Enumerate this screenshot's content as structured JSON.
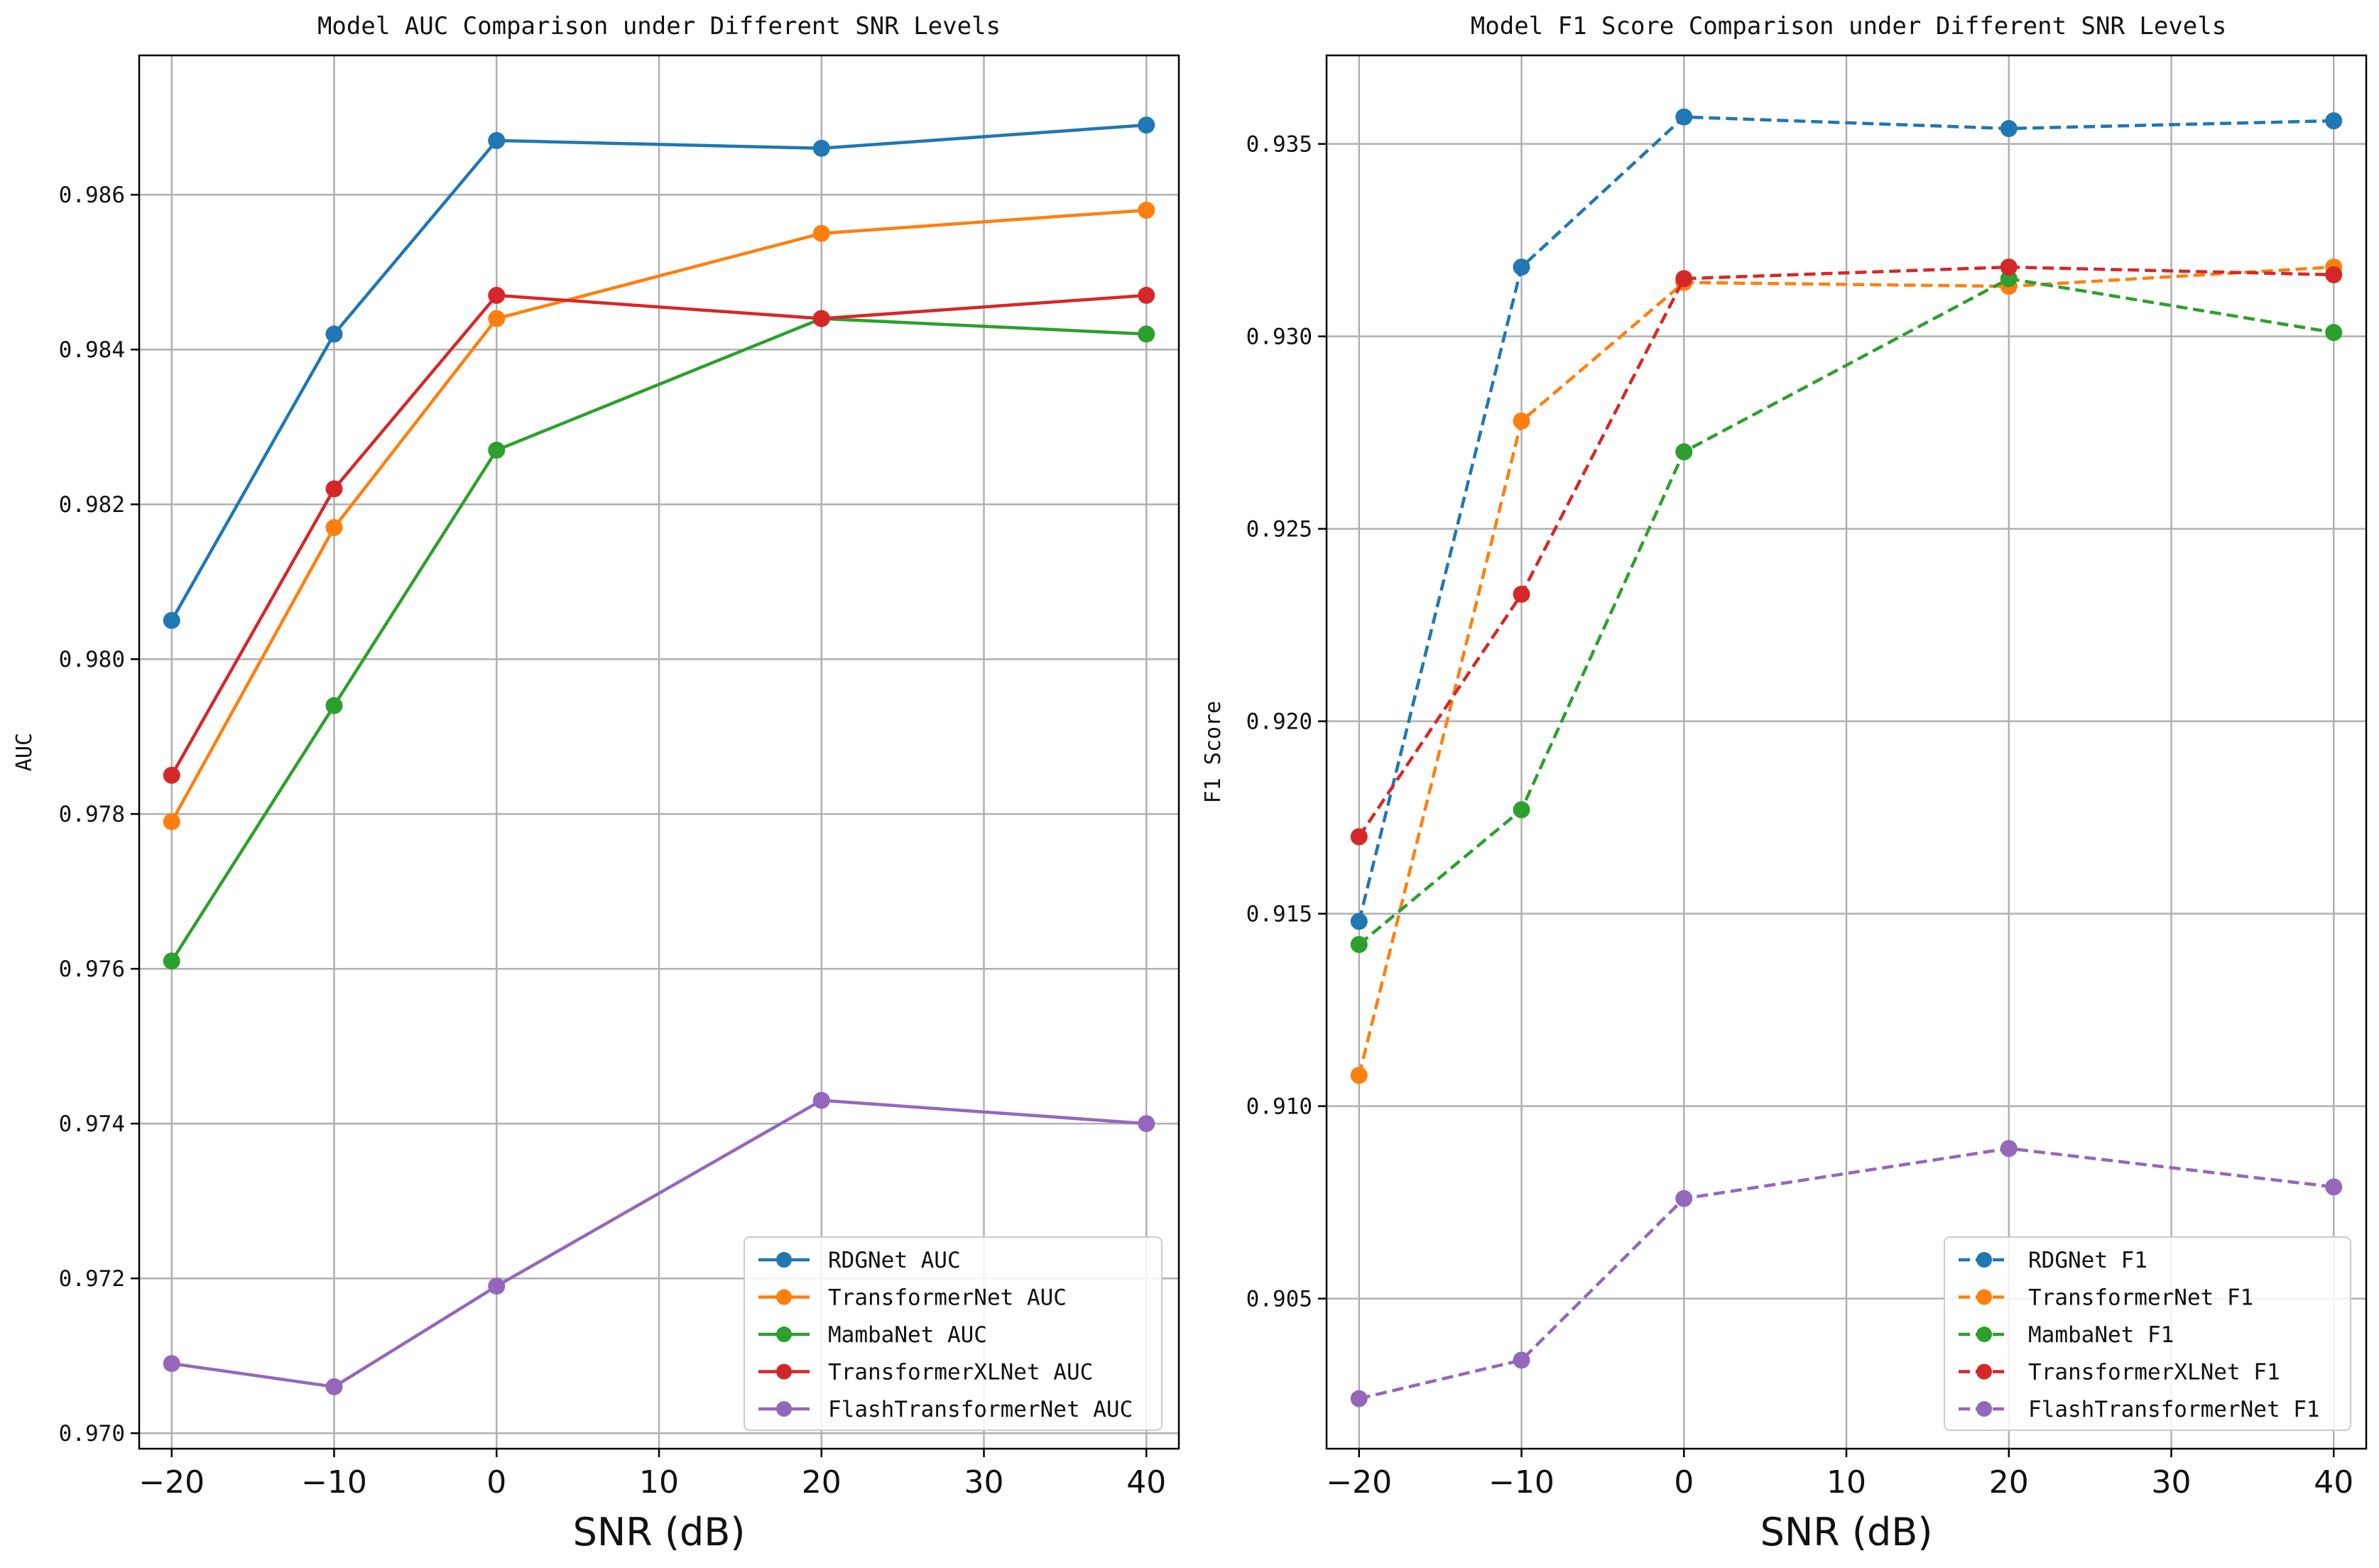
{
  "chart_data": [
    {
      "type": "line",
      "title": "Model AUC Comparison under Different SNR Levels",
      "xlabel": "SNR (dB)",
      "ylabel": "AUC",
      "x": [
        -20,
        -10,
        0,
        20,
        40
      ],
      "xlim": [
        -22,
        42
      ],
      "ylim": [
        0.9698,
        0.9878
      ],
      "xticks": [
        -20,
        -10,
        0,
        10,
        20,
        30,
        40
      ],
      "xtick_labels": [
        "−20",
        "−10",
        "0",
        "10",
        "20",
        "30",
        "40"
      ],
      "yticks": [
        0.97,
        0.972,
        0.974,
        0.976,
        0.978,
        0.98,
        0.982,
        0.984,
        0.986
      ],
      "ytick_labels": [
        "0.970",
        "0.972",
        "0.974",
        "0.976",
        "0.978",
        "0.980",
        "0.982",
        "0.984",
        "0.986"
      ],
      "grid": true,
      "line_style": "solid",
      "legend_position": "lower-right",
      "series": [
        {
          "name": "RDGNet AUC",
          "color": "#1f77b4",
          "values": [
            0.9805,
            0.9842,
            0.9867,
            0.9866,
            0.9869
          ]
        },
        {
          "name": "TransformerNet AUC",
          "color": "#ff7f0e",
          "values": [
            0.9779,
            0.9817,
            0.9844,
            0.9855,
            0.9858
          ]
        },
        {
          "name": "MambaNet AUC",
          "color": "#2ca02c",
          "values": [
            0.9761,
            0.9794,
            0.9827,
            0.9844,
            0.9842
          ]
        },
        {
          "name": "TransformerXLNet AUC",
          "color": "#d62728",
          "values": [
            0.9785,
            0.9822,
            0.9847,
            0.9844,
            0.9847
          ]
        },
        {
          "name": "FlashTransformerNet AUC",
          "color": "#9467bd",
          "values": [
            0.9709,
            0.9706,
            0.9719,
            0.9743,
            0.974
          ]
        }
      ]
    },
    {
      "type": "line",
      "title": "Model F1 Score Comparison under Different SNR Levels",
      "xlabel": "SNR (dB)",
      "ylabel": "F1 Score",
      "x": [
        -20,
        -10,
        0,
        20,
        40
      ],
      "xlim": [
        -22,
        42
      ],
      "ylim": [
        0.9011,
        0.9373
      ],
      "xticks": [
        -20,
        -10,
        0,
        10,
        20,
        30,
        40
      ],
      "xtick_labels": [
        "−20",
        "−10",
        "0",
        "10",
        "20",
        "30",
        "40"
      ],
      "yticks": [
        0.905,
        0.91,
        0.915,
        0.92,
        0.925,
        0.93,
        0.935
      ],
      "ytick_labels": [
        "0.905",
        "0.910",
        "0.915",
        "0.920",
        "0.925",
        "0.930",
        "0.935"
      ],
      "grid": true,
      "line_style": "dashed",
      "legend_position": "lower-right",
      "series": [
        {
          "name": "RDGNet F1",
          "color": "#1f77b4",
          "values": [
            0.9148,
            0.9318,
            0.9357,
            0.9354,
            0.9356
          ]
        },
        {
          "name": "TransformerNet F1",
          "color": "#ff7f0e",
          "values": [
            0.9108,
            0.9278,
            0.9314,
            0.9313,
            0.9318
          ]
        },
        {
          "name": "MambaNet F1",
          "color": "#2ca02c",
          "values": [
            0.9142,
            0.9177,
            0.927,
            0.9315,
            0.9301
          ]
        },
        {
          "name": "TransformerXLNet F1",
          "color": "#d62728",
          "values": [
            0.917,
            0.9233,
            0.9315,
            0.9318,
            0.9316
          ]
        },
        {
          "name": "FlashTransformerNet F1",
          "color": "#9467bd",
          "values": [
            0.9024,
            0.9034,
            0.9076,
            0.9089,
            0.9079
          ]
        }
      ]
    }
  ]
}
